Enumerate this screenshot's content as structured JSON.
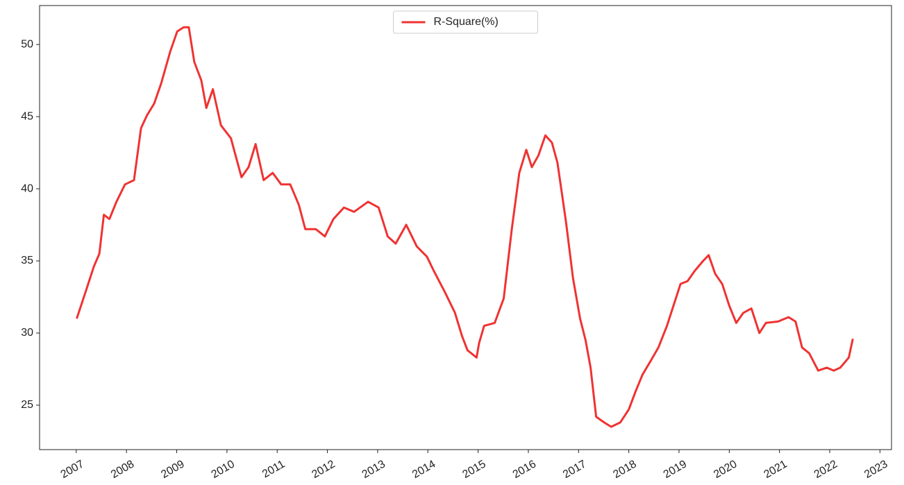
{
  "chart_data": {
    "type": "line",
    "x": [
      2007.01,
      2007.19,
      2007.35,
      2007.46,
      2007.55,
      2007.66,
      2007.8,
      2007.97,
      2008.15,
      2008.29,
      2008.41,
      2008.55,
      2008.69,
      2008.87,
      2009.01,
      2009.14,
      2009.24,
      2009.35,
      2009.49,
      2009.59,
      2009.72,
      2009.88,
      2010.08,
      2010.29,
      2010.43,
      2010.57,
      2010.73,
      2010.91,
      2011.08,
      2011.26,
      2011.43,
      2011.56,
      2011.77,
      2011.95,
      2012.12,
      2012.33,
      2012.53,
      2012.81,
      2013.02,
      2013.2,
      2013.36,
      2013.57,
      2013.78,
      2013.98,
      2014.12,
      2014.33,
      2014.54,
      2014.68,
      2014.79,
      2014.97,
      2015.02,
      2015.12,
      2015.33,
      2015.51,
      2015.67,
      2015.82,
      2015.96,
      2016.07,
      2016.2,
      2016.34,
      2016.47,
      2016.58,
      2016.75,
      2016.89,
      2017.03,
      2017.14,
      2017.24,
      2017.35,
      2017.51,
      2017.65,
      2017.83,
      2018.0,
      2018.13,
      2018.27,
      2018.44,
      2018.59,
      2018.76,
      2018.89,
      2019.03,
      2019.17,
      2019.31,
      2019.48,
      2019.59,
      2019.72,
      2019.86,
      2020.0,
      2020.14,
      2020.28,
      2020.44,
      2020.6,
      2020.73,
      2020.97,
      2021.18,
      2021.32,
      2021.45,
      2021.59,
      2021.77,
      2021.94,
      2022.08,
      2022.21,
      2022.38,
      2022.46
    ],
    "series": [
      {
        "name": "R-Square(%)",
        "color": "#f03232",
        "values": [
          31.0,
          32.9,
          34.6,
          35.5,
          38.2,
          37.9,
          39.1,
          40.3,
          40.6,
          44.2,
          45.1,
          45.9,
          47.3,
          49.5,
          50.9,
          51.2,
          51.2,
          48.8,
          47.5,
          45.6,
          46.9,
          44.4,
          43.5,
          40.8,
          41.5,
          43.1,
          40.6,
          41.1,
          40.3,
          40.3,
          38.9,
          37.2,
          37.2,
          36.7,
          37.9,
          38.7,
          38.4,
          39.1,
          38.7,
          36.7,
          36.2,
          37.5,
          36.0,
          35.3,
          34.3,
          32.9,
          31.4,
          29.8,
          28.8,
          28.3,
          29.3,
          30.5,
          30.7,
          32.4,
          37.2,
          41.1,
          42.7,
          41.5,
          42.3,
          43.7,
          43.2,
          41.8,
          37.7,
          33.8,
          31.0,
          29.5,
          27.6,
          24.2,
          23.8,
          23.5,
          23.8,
          24.7,
          25.9,
          27.1,
          28.1,
          29.0,
          30.5,
          31.9,
          33.4,
          33.6,
          34.3,
          35.0,
          35.4,
          34.1,
          33.4,
          31.9,
          30.7,
          31.4,
          31.7,
          30.0,
          30.7,
          30.8,
          31.1,
          30.8,
          29.0,
          28.6,
          27.4,
          27.6,
          27.4,
          27.6,
          28.3,
          29.6
        ]
      }
    ],
    "xlim": [
      2006.27,
      2023.23
    ],
    "xticks": [
      2007,
      2008,
      2009,
      2010,
      2011,
      2012,
      2013,
      2014,
      2015,
      2016,
      2017,
      2018,
      2019,
      2020,
      2021,
      2022,
      2023
    ],
    "ylim": [
      21.92,
      52.7
    ],
    "yticks": [
      25,
      30,
      35,
      40,
      45,
      50
    ],
    "grid": false,
    "legend": "upper center"
  }
}
